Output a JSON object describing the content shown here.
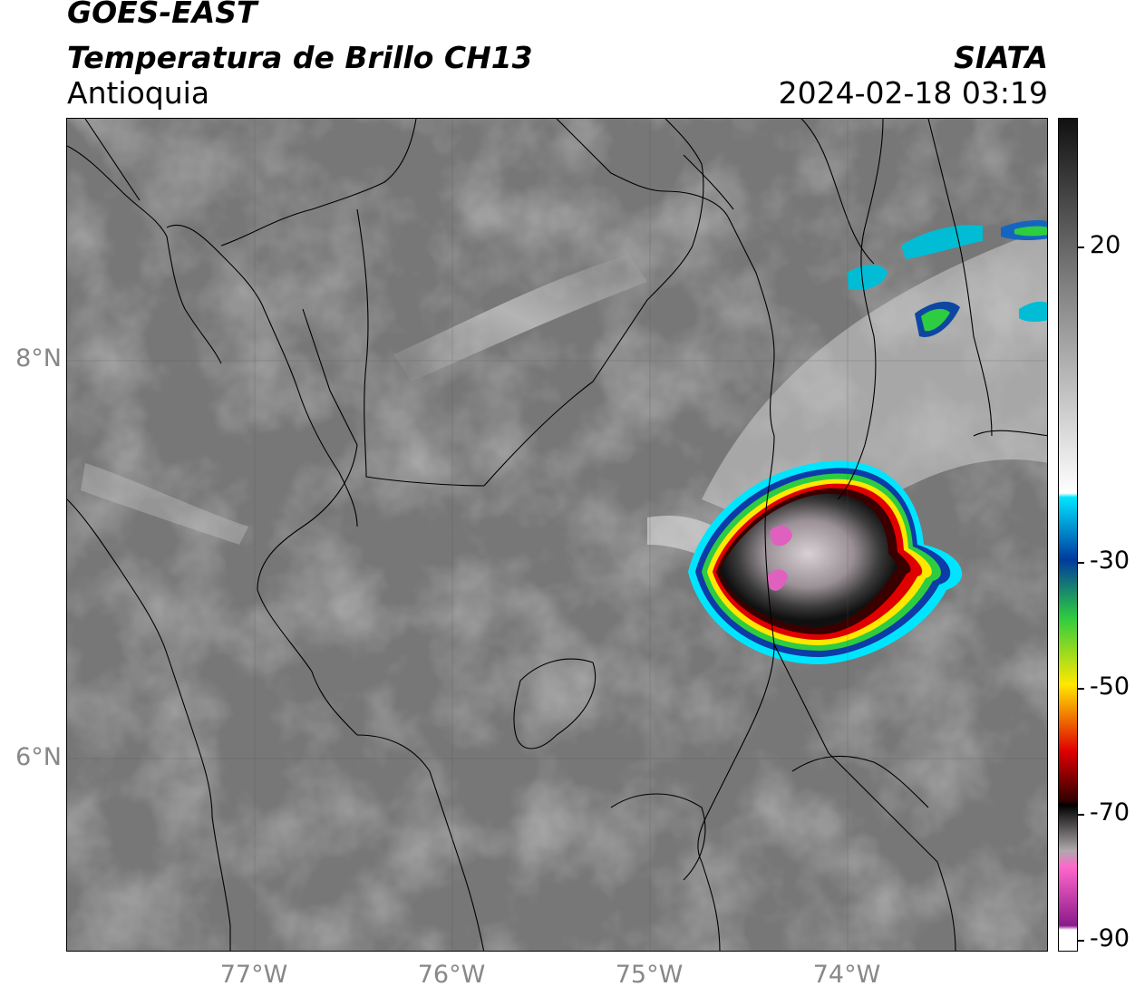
{
  "header": {
    "satellite": "GOES-EAST",
    "product": "Temperatura de Brillo CH13",
    "region": "Antioquia",
    "organization": "SIATA",
    "datetime": "2024-02-18 03:19"
  },
  "map": {
    "lat_labels": [
      "8°N",
      "6°N"
    ],
    "lon_labels": [
      "77°W",
      "76°W",
      "75°W",
      "74°W"
    ]
  },
  "colorbar": {
    "units_range": [
      -90,
      30
    ],
    "labels": [
      "20",
      "-30",
      "-50",
      "-70",
      "-90"
    ],
    "colors": {
      "warm_top": "#111111",
      "warm_mid": "#808080",
      "cold_start": "#ffffff",
      "cyan": "#00e5ff",
      "blue": "#003a9e",
      "green": "#2ecc40",
      "yellow": "#ffe800",
      "red": "#e00000",
      "dark_red": "#300000",
      "pink": "#ff66cc",
      "purple": "#8a1a8a"
    }
  }
}
